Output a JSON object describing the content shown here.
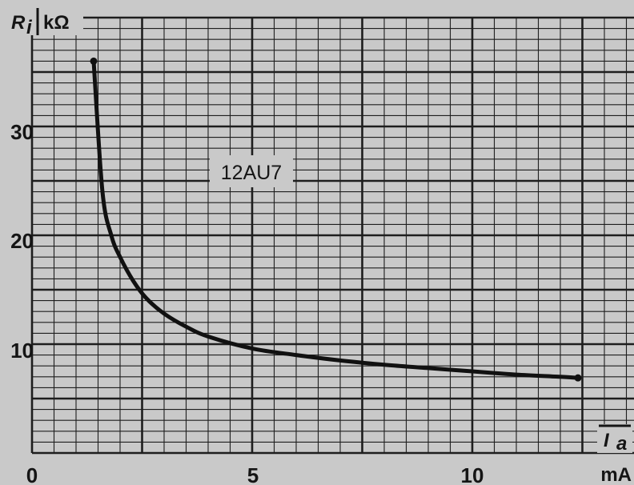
{
  "chart_data": {
    "type": "line",
    "title": "",
    "annotation": "12AU7",
    "ylabel_symbol": "R",
    "ylabel_subscript": "i",
    "ylabel_unit": "kΩ",
    "xlabel_symbol": "I",
    "xlabel_subscript": "a",
    "xlabel_unit": "mA",
    "xlim": [
      0,
      13.7
    ],
    "ylim": [
      0,
      40
    ],
    "x_ticks": [
      0,
      5,
      10
    ],
    "x_tick_labels": [
      "0",
      "5",
      "10"
    ],
    "y_ticks": [
      10,
      20,
      30
    ],
    "y_tick_labels": [
      "10",
      "20",
      "30"
    ],
    "grid": true,
    "legend": "none",
    "colors": {
      "background": "#c9c9c9",
      "grid": "#1e1e1e",
      "curve": "#111111"
    },
    "series": [
      {
        "x": [
          1.4,
          1.6,
          1.8,
          2.0,
          2.3,
          2.6,
          3.0,
          3.5,
          4.0,
          5.0,
          6.0,
          7.0,
          8.0,
          9.0,
          10.0,
          11.0,
          12.0,
          12.4
        ],
        "values": [
          36,
          24,
          20,
          18,
          15.8,
          14.2,
          12.8,
          11.6,
          10.7,
          9.6,
          9.0,
          8.5,
          8.1,
          7.8,
          7.5,
          7.2,
          7.0,
          6.9
        ]
      }
    ]
  }
}
